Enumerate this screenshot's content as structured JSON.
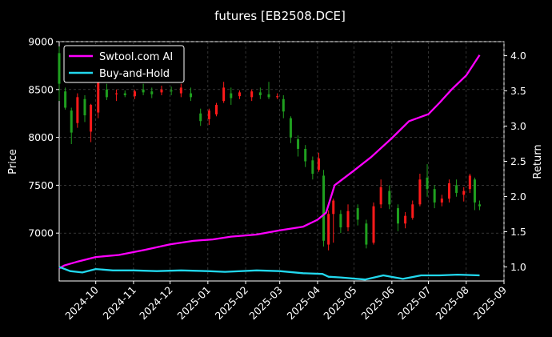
{
  "chart_data": {
    "type": "candlestick+line",
    "title": "futures [EB2508.DCE]",
    "ylabel_left": "Price",
    "ylabel_right": "Return",
    "x_ticks": [
      "2024-10",
      "2024-11",
      "2024-12",
      "2025-01",
      "2025-02",
      "2025-03",
      "2025-04",
      "2025-05",
      "2025-06",
      "2025-07",
      "2025-08",
      "2025-09"
    ],
    "x_range": [
      "2024-09-01",
      "2025-09-01"
    ],
    "y_left_ticks": [
      7000,
      7500,
      8000,
      8500,
      9000
    ],
    "y_left_range": [
      6500,
      9000
    ],
    "y_right_ticks": [
      1.0,
      1.5,
      2.0,
      2.5,
      3.0,
      3.5,
      4.0
    ],
    "y_right_range": [
      0.8,
      4.2
    ],
    "grid": true,
    "legend_position": "top-left",
    "colors": {
      "background": "#000000",
      "up": "#ff1a1a",
      "down": "#1fa01f",
      "ai_line": "#ff00ff",
      "hold_line": "#22d8ee",
      "grid": "#555555"
    },
    "series": [
      {
        "name": "Swtool.com AI",
        "points": [
          [
            "2024-09-01",
            0.98
          ],
          [
            "2024-09-05",
            1.02
          ],
          [
            "2024-09-15",
            1.07
          ],
          [
            "2024-10-01",
            1.14
          ],
          [
            "2024-10-20",
            1.17
          ],
          [
            "2024-11-10",
            1.24
          ],
          [
            "2024-12-01",
            1.32
          ],
          [
            "2024-12-20",
            1.37
          ],
          [
            "2025-01-05",
            1.39
          ],
          [
            "2025-01-20",
            1.43
          ],
          [
            "2025-02-10",
            1.46
          ],
          [
            "2025-03-01",
            1.52
          ],
          [
            "2025-03-20",
            1.57
          ],
          [
            "2025-04-01",
            1.67
          ],
          [
            "2025-04-08",
            1.77
          ],
          [
            "2025-04-15",
            2.16
          ],
          [
            "2025-05-01",
            2.37
          ],
          [
            "2025-05-15",
            2.56
          ],
          [
            "2025-06-01",
            2.83
          ],
          [
            "2025-06-15",
            3.07
          ],
          [
            "2025-07-01",
            3.17
          ],
          [
            "2025-07-10",
            3.33
          ],
          [
            "2025-07-20",
            3.52
          ],
          [
            "2025-08-01",
            3.72
          ],
          [
            "2025-08-12",
            4.01
          ]
        ]
      },
      {
        "name": "Buy-and-Hold",
        "points": [
          [
            "2024-09-01",
            1.0
          ],
          [
            "2024-09-10",
            0.94
          ],
          [
            "2024-09-20",
            0.92
          ],
          [
            "2024-10-01",
            0.97
          ],
          [
            "2024-10-15",
            0.95
          ],
          [
            "2024-11-01",
            0.95
          ],
          [
            "2024-11-20",
            0.94
          ],
          [
            "2024-12-10",
            0.95
          ],
          [
            "2025-01-01",
            0.94
          ],
          [
            "2025-01-15",
            0.93
          ],
          [
            "2025-02-10",
            0.95
          ],
          [
            "2025-03-01",
            0.94
          ],
          [
            "2025-03-20",
            0.91
          ],
          [
            "2025-04-05",
            0.9
          ],
          [
            "2025-04-10",
            0.86
          ],
          [
            "2025-04-20",
            0.85
          ],
          [
            "2025-05-10",
            0.82
          ],
          [
            "2025-05-25",
            0.88
          ],
          [
            "2025-06-10",
            0.83
          ],
          [
            "2025-06-25",
            0.88
          ],
          [
            "2025-07-10",
            0.88
          ],
          [
            "2025-07-25",
            0.89
          ],
          [
            "2025-08-12",
            0.88
          ]
        ]
      }
    ],
    "candles": [
      [
        "2024-09-01",
        8880,
        8560,
        8950,
        8380,
        "down"
      ],
      [
        "2024-09-06",
        8480,
        8310,
        8520,
        8290,
        "down"
      ],
      [
        "2024-09-11",
        8280,
        8050,
        8310,
        7930,
        "down"
      ],
      [
        "2024-09-16",
        8150,
        8420,
        8460,
        8100,
        "up"
      ],
      [
        "2024-09-22",
        8400,
        8230,
        8440,
        8160,
        "down"
      ],
      [
        "2024-09-27",
        8060,
        8340,
        8350,
        7950,
        "up"
      ],
      [
        "2024-10-03",
        8260,
        8600,
        8620,
        8200,
        "up"
      ],
      [
        "2024-10-10",
        8500,
        8420,
        8560,
        8390,
        "down"
      ],
      [
        "2024-10-18",
        8450,
        8460,
        8500,
        8380,
        "up"
      ],
      [
        "2024-10-25",
        8460,
        8440,
        8490,
        8420,
        "down"
      ],
      [
        "2024-11-02",
        8430,
        8480,
        8500,
        8400,
        "up"
      ],
      [
        "2024-11-09",
        8500,
        8470,
        8560,
        8440,
        "down"
      ],
      [
        "2024-11-16",
        8480,
        8450,
        8520,
        8410,
        "down"
      ],
      [
        "2024-11-24",
        8470,
        8500,
        8540,
        8440,
        "up"
      ],
      [
        "2024-12-02",
        8490,
        8480,
        8530,
        8440,
        "down"
      ],
      [
        "2024-12-10",
        8460,
        8520,
        8560,
        8420,
        "up"
      ],
      [
        "2024-12-18",
        8460,
        8420,
        8520,
        8380,
        "down"
      ],
      [
        "2024-12-26",
        8250,
        8170,
        8300,
        8120,
        "down"
      ],
      [
        "2025-01-02",
        8190,
        8280,
        8300,
        8130,
        "up"
      ],
      [
        "2025-01-08",
        8240,
        8340,
        8360,
        8220,
        "up"
      ],
      [
        "2025-01-14",
        8380,
        8520,
        8580,
        8360,
        "up"
      ],
      [
        "2025-01-20",
        8460,
        8410,
        8520,
        8340,
        "down"
      ],
      [
        "2025-01-27",
        8430,
        8470,
        8490,
        8400,
        "up"
      ],
      [
        "2025-02-06",
        8420,
        8480,
        8500,
        8380,
        "up"
      ],
      [
        "2025-02-13",
        8470,
        8440,
        8520,
        8400,
        "down"
      ],
      [
        "2025-02-20",
        8450,
        8420,
        8580,
        8400,
        "down"
      ],
      [
        "2025-02-27",
        8430,
        8430,
        8460,
        8400,
        "up"
      ],
      [
        "2025-03-04",
        8400,
        8270,
        8440,
        8200,
        "down"
      ],
      [
        "2025-03-10",
        8200,
        8000,
        8220,
        7940,
        "down"
      ],
      [
        "2025-03-16",
        7980,
        7880,
        8020,
        7800,
        "down"
      ],
      [
        "2025-03-22",
        7880,
        7750,
        7920,
        7690,
        "down"
      ],
      [
        "2025-03-28",
        7760,
        7620,
        7800,
        7560,
        "down"
      ],
      [
        "2025-04-02",
        7660,
        7780,
        7840,
        7640,
        "up"
      ],
      [
        "2025-04-06",
        7600,
        6920,
        7660,
        6860,
        "down"
      ],
      [
        "2025-04-10",
        6880,
        7200,
        7240,
        6820,
        "up"
      ],
      [
        "2025-04-14",
        7200,
        7340,
        7360,
        6900,
        "up"
      ],
      [
        "2025-04-20",
        7200,
        7060,
        7240,
        7000,
        "down"
      ],
      [
        "2025-04-26",
        7060,
        7230,
        7300,
        7020,
        "up"
      ],
      [
        "2025-05-04",
        7260,
        7140,
        7300,
        7080,
        "down"
      ],
      [
        "2025-05-11",
        7100,
        6880,
        7140,
        6840,
        "down"
      ],
      [
        "2025-05-17",
        6900,
        7280,
        7320,
        6880,
        "up"
      ],
      [
        "2025-05-23",
        7300,
        7480,
        7560,
        7260,
        "up"
      ],
      [
        "2025-05-30",
        7440,
        7300,
        7500,
        7250,
        "down"
      ],
      [
        "2025-06-06",
        7260,
        7100,
        7300,
        7020,
        "down"
      ],
      [
        "2025-06-12",
        7100,
        7180,
        7220,
        7050,
        "up"
      ],
      [
        "2025-06-18",
        7160,
        7300,
        7340,
        7140,
        "up"
      ],
      [
        "2025-06-24",
        7300,
        7560,
        7620,
        7280,
        "up"
      ],
      [
        "2025-06-30",
        7580,
        7460,
        7720,
        7380,
        "down"
      ],
      [
        "2025-07-06",
        7460,
        7320,
        7500,
        7260,
        "down"
      ],
      [
        "2025-07-12",
        7320,
        7360,
        7400,
        7280,
        "up"
      ],
      [
        "2025-07-18",
        7360,
        7520,
        7560,
        7320,
        "up"
      ],
      [
        "2025-07-24",
        7500,
        7420,
        7560,
        7380,
        "down"
      ],
      [
        "2025-07-30",
        7400,
        7440,
        7480,
        7330,
        "up"
      ],
      [
        "2025-08-04",
        7460,
        7600,
        7620,
        7420,
        "up"
      ],
      [
        "2025-08-08",
        7560,
        7320,
        7580,
        7240,
        "down"
      ],
      [
        "2025-08-12",
        7300,
        7280,
        7340,
        7240,
        "down"
      ]
    ]
  }
}
